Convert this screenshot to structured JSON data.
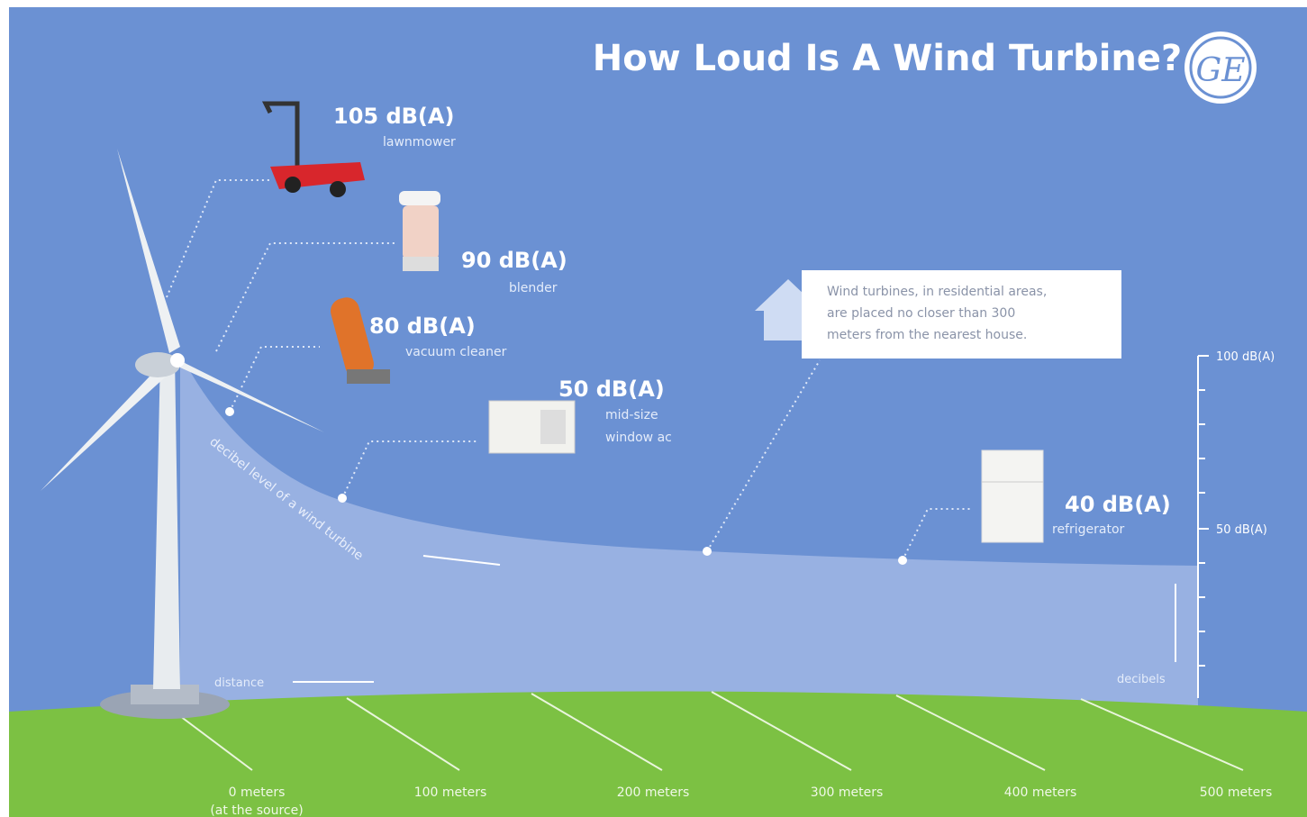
{
  "header": {
    "title": "How Loud Is A Wind Turbine?",
    "logo": "GE"
  },
  "sources": [
    {
      "level": "105 dB(A)",
      "label": [
        "lawnmower"
      ]
    },
    {
      "level": "90 dB(A)",
      "label": [
        "blender"
      ]
    },
    {
      "level": "80 dB(A)",
      "label": [
        "vacuum cleaner"
      ]
    },
    {
      "level": "50 dB(A)",
      "label": [
        "mid-size",
        "window ac"
      ]
    },
    {
      "level": "40 dB(A)",
      "label": [
        "refrigerator"
      ]
    }
  ],
  "note": [
    "Wind turbines, in residential areas,",
    "are placed no closer than 300",
    "meters from the nearest house."
  ],
  "curve_label": "decibel level of a wind turbine",
  "axis_labels": {
    "distance": "distance",
    "decibels": "decibels"
  },
  "scale": [
    "100 dB(A)",
    "50 dB(A)"
  ],
  "distances": [
    [
      "0 meters",
      "(at the source)"
    ],
    [
      "100 meters"
    ],
    [
      "200 meters"
    ],
    [
      "300 meters"
    ],
    [
      "400 meters"
    ],
    [
      "500 meters"
    ]
  ]
}
